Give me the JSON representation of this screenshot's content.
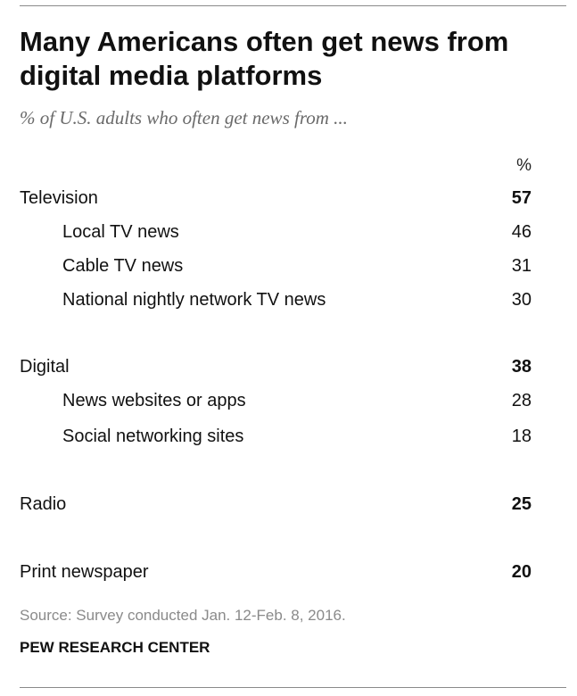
{
  "title": "Many Americans often get news from digital media platforms",
  "subtitle": "% of U.S. adults who often get news from ...",
  "unit_label": "%",
  "source": "Source: Survey conducted Jan. 12-Feb. 8, 2016.",
  "organization": "PEW RESEARCH CENTER",
  "chart_data": {
    "type": "table",
    "title": "Many Americans often get news from digital media platforms",
    "subtitle": "% of U.S. adults who often get news from ...",
    "columns": [
      "%"
    ],
    "rows": [
      {
        "label": "Television",
        "value": 57,
        "level": 0
      },
      {
        "label": "Local TV news",
        "value": 46,
        "level": 1
      },
      {
        "label": "Cable TV news",
        "value": 31,
        "level": 1
      },
      {
        "label": "National nightly network TV news",
        "value": 30,
        "level": 1
      },
      {
        "label": "Digital",
        "value": 38,
        "level": 0
      },
      {
        "label": "News websites or apps",
        "value": 28,
        "level": 1
      },
      {
        "label": "Social networking sites",
        "value": 18,
        "level": 1
      },
      {
        "label": "Radio",
        "value": 25,
        "level": 0
      },
      {
        "label": "Print newspaper",
        "value": 20,
        "level": 0
      }
    ]
  }
}
